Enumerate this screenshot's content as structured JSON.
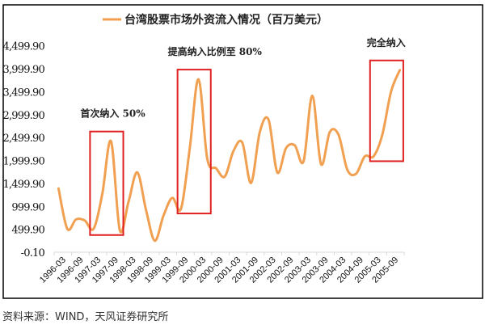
{
  "chart_data": {
    "type": "line",
    "title": "台湾股票市场外资流入情况（百万美元）",
    "legend": [
      {
        "name": "台湾股票市场外资流入情况（百万美元）",
        "color": "#F0A050"
      }
    ],
    "legend_position": "top-center",
    "xlabel": "",
    "ylabel": "",
    "ylim": [
      -0.1,
      4499.9
    ],
    "y_ticks": [
      "4,499.90",
      "3,999.90",
      "3,499.90",
      "2,999.90",
      "2,499.90",
      "1,999.90",
      "1,499.90",
      "999.90",
      "499.90",
      "-0.10"
    ],
    "x_tick_labels": [
      "1996-03",
      "1996-09",
      "1997-03",
      "1997-09",
      "1998-03",
      "1998-09",
      "1999-03",
      "1999-09",
      "2000-03",
      "2000-09",
      "2001-03",
      "2001-09",
      "2002-03",
      "2002-09",
      "2003-03",
      "2003-09",
      "2004-03",
      "2004-09",
      "2005-03",
      "2005-09"
    ],
    "series": [
      {
        "name": "台湾股票市场外资流入情况（百万美元）",
        "frequency": "quarterly",
        "values": [
          1390,
          510,
          715,
          690,
          510,
          1270,
          2420,
          480,
          1100,
          1740,
          920,
          250,
          800,
          1185,
          950,
          2270,
          3770,
          2035,
          1830,
          1650,
          2210,
          2390,
          1510,
          2620,
          2890,
          1740,
          2270,
          2330,
          1980,
          3410,
          1920,
          2620,
          2560,
          1800,
          1710,
          2090,
          2090,
          2560,
          3500,
          3970
        ]
      }
    ],
    "annotations": [
      {
        "text": "首次纳入 50%",
        "from_index": 4,
        "to_index": 7
      },
      {
        "text": "提高纳入比例至 80%",
        "from_index": 14,
        "to_index": 17
      },
      {
        "text": "完全纳入",
        "from_index": 36,
        "to_index": 39
      }
    ],
    "grid": false
  },
  "source": "资料来源：WIND，天风证券研究所",
  "colors": {
    "line": "#F0A050",
    "box": "#E02020",
    "frame": "#000000"
  }
}
